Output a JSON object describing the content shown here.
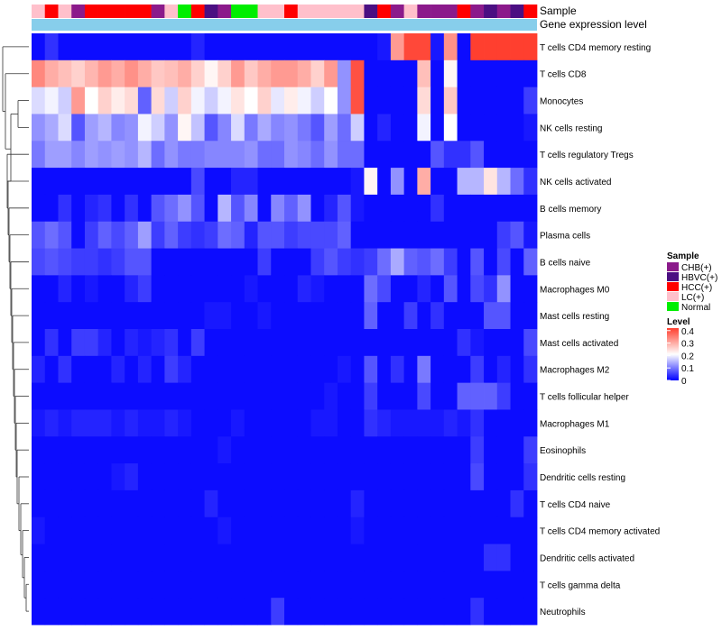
{
  "chart_data": {
    "type": "heatmap",
    "title": "",
    "annotation_tracks": [
      "Sample",
      "Gene expression level"
    ],
    "legend_sample": {
      "title": "Sample",
      "entries": [
        {
          "label": "CHB(+)",
          "color": "#8b1a8b"
        },
        {
          "label": "HBVC(+)",
          "color": "#4b0f82"
        },
        {
          "label": "HCC(+)",
          "color": "#ff0000"
        },
        {
          "label": "LC(+)",
          "color": "#ffc0cb"
        },
        {
          "label": "Normal",
          "color": "#00ee00"
        }
      ]
    },
    "legend_level": {
      "title": "Level",
      "ticks": [
        "0.4",
        "0.3",
        "0.2",
        "0.1",
        "0"
      ],
      "range": [
        0,
        0.42
      ],
      "colors": [
        "#0000ff",
        "#ffffff",
        "#ff3f2f"
      ]
    },
    "gene_expression_color": "#87ceeb",
    "sample_colors": [
      "#ffc0cb",
      "#ff0000",
      "#ffc0cb",
      "#8b1a8b",
      "#ff0000",
      "#ff0000",
      "#ff0000",
      "#ff0000",
      "#ff0000",
      "#8b1a8b",
      "#ffc0cb",
      "#00ee00",
      "#ff0000",
      "#4b0f82",
      "#8b1a8b",
      "#00ee00",
      "#00ee00",
      "#ffc0cb",
      "#ffc0cb",
      "#ff0000",
      "#ffc0cb",
      "#ffc0cb",
      "#ffc0cb",
      "#ffc0cb",
      "#ffc0cb",
      "#4b0f82",
      "#ff0000",
      "#8b1a8b",
      "#ffc0cb",
      "#8b1a8b",
      "#8b1a8b",
      "#8b1a8b",
      "#ff0000",
      "#8b1a8b",
      "#4b0f82",
      "#8b1a8b",
      "#4b0f82",
      "#ff0000"
    ],
    "rows": [
      "T cells CD4 memory resting",
      "T cells CD8",
      "Monocytes",
      "NK cells resting",
      "T cells regulatory  Tregs",
      "NK cells activated",
      "B cells memory",
      "Plasma cells",
      "B cells naive",
      "Macrophages M0",
      "Mast cells resting",
      "Mast cells activated",
      "Macrophages M2",
      "T cells follicular helper",
      "Macrophages M1",
      "Eosinophils",
      "Dendritic cells resting",
      "T cells CD4 naive",
      "T cells CD4 memory activated",
      "Dendritic cells activated",
      "T cells gamma delta",
      "Neutrophils"
    ],
    "values": [
      [
        0.01,
        0.04,
        0.01,
        0.01,
        0.01,
        0.01,
        0.01,
        0.01,
        0.01,
        0.01,
        0.01,
        0.01,
        0.03,
        0.01,
        0.01,
        0.01,
        0.01,
        0.01,
        0.01,
        0.01,
        0.01,
        0.01,
        0.01,
        0.01,
        0.01,
        0.01,
        0.02,
        0.32,
        0.41,
        0.41,
        0.02,
        0.33,
        0.01,
        0.42,
        0.42,
        0.42,
        0.42,
        0.42
      ],
      [
        0.34,
        0.3,
        0.28,
        0.26,
        0.29,
        0.32,
        0.3,
        0.33,
        0.3,
        0.27,
        0.28,
        0.3,
        0.26,
        0.22,
        0.26,
        0.32,
        0.27,
        0.3,
        0.32,
        0.32,
        0.3,
        0.26,
        0.32,
        0.12,
        0.4,
        0.01,
        0.01,
        0.01,
        0.01,
        0.28,
        0.01,
        0.22,
        0.01,
        0.01,
        0.01,
        0.01,
        0.01,
        0.01
      ],
      [
        0.18,
        0.2,
        0.17,
        0.32,
        0.21,
        0.26,
        0.23,
        0.25,
        0.08,
        0.25,
        0.17,
        0.26,
        0.2,
        0.17,
        0.2,
        0.24,
        0.21,
        0.26,
        0.19,
        0.23,
        0.2,
        0.17,
        0.21,
        0.12,
        0.4,
        0.01,
        0.01,
        0.01,
        0.01,
        0.25,
        0.01,
        0.27,
        0.01,
        0.01,
        0.01,
        0.01,
        0.01,
        0.05
      ],
      [
        0.12,
        0.14,
        0.18,
        0.07,
        0.13,
        0.15,
        0.11,
        0.12,
        0.2,
        0.17,
        0.12,
        0.22,
        0.16,
        0.07,
        0.11,
        0.18,
        0.1,
        0.14,
        0.11,
        0.12,
        0.1,
        0.07,
        0.13,
        0.09,
        0.17,
        0.01,
        0.03,
        0.01,
        0.01,
        0.2,
        0.01,
        0.21,
        0.01,
        0.01,
        0.01,
        0.01,
        0.01,
        0.02
      ],
      [
        0.1,
        0.13,
        0.13,
        0.11,
        0.13,
        0.12,
        0.13,
        0.12,
        0.15,
        0.09,
        0.12,
        0.1,
        0.1,
        0.11,
        0.11,
        0.11,
        0.12,
        0.09,
        0.09,
        0.12,
        0.11,
        0.09,
        0.12,
        0.09,
        0.09,
        0.01,
        0.01,
        0.01,
        0.01,
        0.01,
        0.07,
        0.04,
        0.04,
        0.07,
        0.01,
        0.01,
        0.01,
        0.01
      ],
      [
        0.01,
        0.01,
        0.01,
        0.01,
        0.01,
        0.01,
        0.01,
        0.01,
        0.01,
        0.01,
        0.01,
        0.01,
        0.06,
        0.01,
        0.01,
        0.03,
        0.03,
        0.01,
        0.01,
        0.01,
        0.01,
        0.01,
        0.01,
        0.01,
        0.02,
        0.22,
        0.01,
        0.12,
        0.01,
        0.3,
        0.01,
        0.01,
        0.15,
        0.15,
        0.24,
        0.15,
        0.09,
        0.04
      ],
      [
        0.01,
        0.01,
        0.04,
        0.01,
        0.03,
        0.04,
        0.01,
        0.04,
        0.01,
        0.07,
        0.09,
        0.12,
        0.07,
        0.01,
        0.15,
        0.07,
        0.11,
        0.01,
        0.11,
        0.08,
        0.12,
        0.01,
        0.03,
        0.07,
        0.02,
        0.01,
        0.01,
        0.01,
        0.01,
        0.01,
        0.04,
        0.01,
        0.01,
        0.01,
        0.01,
        0.01,
        0.01,
        0.01
      ],
      [
        0.07,
        0.09,
        0.07,
        0.01,
        0.05,
        0.08,
        0.06,
        0.08,
        0.13,
        0.05,
        0.08,
        0.05,
        0.04,
        0.05,
        0.09,
        0.08,
        0.03,
        0.07,
        0.07,
        0.05,
        0.06,
        0.06,
        0.06,
        0.08,
        0.01,
        0.01,
        0.01,
        0.01,
        0.01,
        0.01,
        0.01,
        0.01,
        0.01,
        0.01,
        0.01,
        0.05,
        0.07,
        0.02
      ],
      [
        0.06,
        0.07,
        0.06,
        0.05,
        0.05,
        0.04,
        0.05,
        0.07,
        0.07,
        0.01,
        0.01,
        0.01,
        0.01,
        0.01,
        0.01,
        0.01,
        0.01,
        0.05,
        0.01,
        0.01,
        0.01,
        0.05,
        0.07,
        0.05,
        0.04,
        0.05,
        0.09,
        0.14,
        0.08,
        0.07,
        0.09,
        0.05,
        0.01,
        0.07,
        0.01,
        0.06,
        0.01,
        0.08
      ],
      [
        0.01,
        0.01,
        0.03,
        0.01,
        0.02,
        0.01,
        0.01,
        0.03,
        0.05,
        0.01,
        0.01,
        0.01,
        0.01,
        0.01,
        0.01,
        0.01,
        0.02,
        0.01,
        0.01,
        0.01,
        0.03,
        0.02,
        0.01,
        0.01,
        0.01,
        0.09,
        0.06,
        0.01,
        0.01,
        0.03,
        0.01,
        0.07,
        0.01,
        0.06,
        0.04,
        0.12,
        0.01,
        0.01
      ],
      [
        0.01,
        0.01,
        0.01,
        0.01,
        0.01,
        0.01,
        0.01,
        0.01,
        0.01,
        0.01,
        0.01,
        0.01,
        0.01,
        0.02,
        0.02,
        0.01,
        0.01,
        0.02,
        0.01,
        0.01,
        0.01,
        0.01,
        0.01,
        0.01,
        0.01,
        0.08,
        0.01,
        0.01,
        0.05,
        0.01,
        0.04,
        0.01,
        0.01,
        0.01,
        0.07,
        0.07,
        0.01,
        0.01
      ],
      [
        0.01,
        0.04,
        0.01,
        0.05,
        0.05,
        0.03,
        0.01,
        0.03,
        0.02,
        0.03,
        0.04,
        0.01,
        0.05,
        0.01,
        0.01,
        0.01,
        0.01,
        0.01,
        0.01,
        0.01,
        0.01,
        0.01,
        0.01,
        0.01,
        0.01,
        0.01,
        0.01,
        0.01,
        0.01,
        0.01,
        0.01,
        0.01,
        0.04,
        0.02,
        0.01,
        0.01,
        0.01,
        0.06
      ],
      [
        0.03,
        0.01,
        0.04,
        0.01,
        0.01,
        0.01,
        0.03,
        0.01,
        0.03,
        0.01,
        0.05,
        0.03,
        0.01,
        0.01,
        0.01,
        0.01,
        0.01,
        0.01,
        0.01,
        0.01,
        0.01,
        0.01,
        0.01,
        0.02,
        0.01,
        0.07,
        0.01,
        0.04,
        0.01,
        0.1,
        0.01,
        0.01,
        0.01,
        0.05,
        0.01,
        0.03,
        0.01,
        0.04
      ],
      [
        0.01,
        0.01,
        0.01,
        0.01,
        0.01,
        0.01,
        0.01,
        0.01,
        0.01,
        0.01,
        0.01,
        0.01,
        0.01,
        0.01,
        0.01,
        0.01,
        0.01,
        0.01,
        0.01,
        0.01,
        0.01,
        0.01,
        0.02,
        0.01,
        0.01,
        0.05,
        0.01,
        0.01,
        0.01,
        0.06,
        0.01,
        0.01,
        0.08,
        0.08,
        0.08,
        0.05,
        0.01,
        0.01
      ],
      [
        0.02,
        0.03,
        0.02,
        0.03,
        0.03,
        0.03,
        0.02,
        0.03,
        0.02,
        0.02,
        0.03,
        0.02,
        0.01,
        0.01,
        0.01,
        0.02,
        0.01,
        0.01,
        0.01,
        0.01,
        0.01,
        0.02,
        0.02,
        0.01,
        0.01,
        0.04,
        0.03,
        0.02,
        0.02,
        0.02,
        0.02,
        0.03,
        0.02,
        0.04,
        0.01,
        0.01,
        0.01,
        0.01
      ],
      [
        0.01,
        0.01,
        0.01,
        0.01,
        0.01,
        0.01,
        0.01,
        0.01,
        0.01,
        0.01,
        0.01,
        0.01,
        0.01,
        0.01,
        0.02,
        0.01,
        0.01,
        0.01,
        0.01,
        0.01,
        0.01,
        0.01,
        0.01,
        0.01,
        0.01,
        0.01,
        0.01,
        0.01,
        0.01,
        0.01,
        0.01,
        0.01,
        0.01,
        0.05,
        0.01,
        0.01,
        0.01,
        0.05
      ],
      [
        0.01,
        0.01,
        0.01,
        0.01,
        0.01,
        0.01,
        0.02,
        0.03,
        0.01,
        0.01,
        0.01,
        0.01,
        0.01,
        0.01,
        0.01,
        0.01,
        0.01,
        0.01,
        0.01,
        0.01,
        0.01,
        0.01,
        0.01,
        0.01,
        0.01,
        0.01,
        0.01,
        0.01,
        0.01,
        0.01,
        0.01,
        0.01,
        0.01,
        0.06,
        0.01,
        0.01,
        0.01,
        0.04
      ],
      [
        0.01,
        0.01,
        0.01,
        0.01,
        0.01,
        0.01,
        0.01,
        0.01,
        0.01,
        0.01,
        0.01,
        0.01,
        0.01,
        0.03,
        0.01,
        0.01,
        0.01,
        0.01,
        0.01,
        0.01,
        0.01,
        0.01,
        0.01,
        0.01,
        0.03,
        0.01,
        0.01,
        0.01,
        0.01,
        0.01,
        0.01,
        0.01,
        0.01,
        0.01,
        0.01,
        0.01,
        0.04,
        0.01
      ],
      [
        0.02,
        0.01,
        0.01,
        0.01,
        0.01,
        0.01,
        0.01,
        0.01,
        0.01,
        0.01,
        0.01,
        0.01,
        0.01,
        0.01,
        0.02,
        0.01,
        0.01,
        0.01,
        0.01,
        0.01,
        0.01,
        0.01,
        0.01,
        0.01,
        0.02,
        0.01,
        0.01,
        0.01,
        0.01,
        0.01,
        0.01,
        0.01,
        0.01,
        0.01,
        0.01,
        0.01,
        0.01,
        0.01
      ],
      [
        0.01,
        0.01,
        0.01,
        0.01,
        0.01,
        0.01,
        0.01,
        0.01,
        0.01,
        0.01,
        0.01,
        0.01,
        0.01,
        0.01,
        0.01,
        0.01,
        0.01,
        0.01,
        0.01,
        0.01,
        0.01,
        0.01,
        0.01,
        0.01,
        0.01,
        0.01,
        0.01,
        0.01,
        0.01,
        0.01,
        0.01,
        0.01,
        0.01,
        0.01,
        0.04,
        0.04,
        0.01,
        0.01
      ],
      [
        0.01,
        0.01,
        0.01,
        0.01,
        0.01,
        0.01,
        0.01,
        0.01,
        0.01,
        0.01,
        0.01,
        0.01,
        0.01,
        0.01,
        0.01,
        0.01,
        0.01,
        0.01,
        0.01,
        0.01,
        0.01,
        0.01,
        0.01,
        0.01,
        0.01,
        0.01,
        0.01,
        0.01,
        0.01,
        0.01,
        0.01,
        0.01,
        0.01,
        0.01,
        0.01,
        0.01,
        0.01,
        0.01
      ],
      [
        0.01,
        0.01,
        0.01,
        0.01,
        0.01,
        0.01,
        0.01,
        0.01,
        0.01,
        0.01,
        0.01,
        0.01,
        0.01,
        0.01,
        0.01,
        0.01,
        0.01,
        0.01,
        0.05,
        0.01,
        0.01,
        0.01,
        0.01,
        0.01,
        0.01,
        0.01,
        0.01,
        0.01,
        0.01,
        0.01,
        0.01,
        0.01,
        0.01,
        0.04,
        0.01,
        0.01,
        0.01,
        0.01
      ]
    ]
  }
}
